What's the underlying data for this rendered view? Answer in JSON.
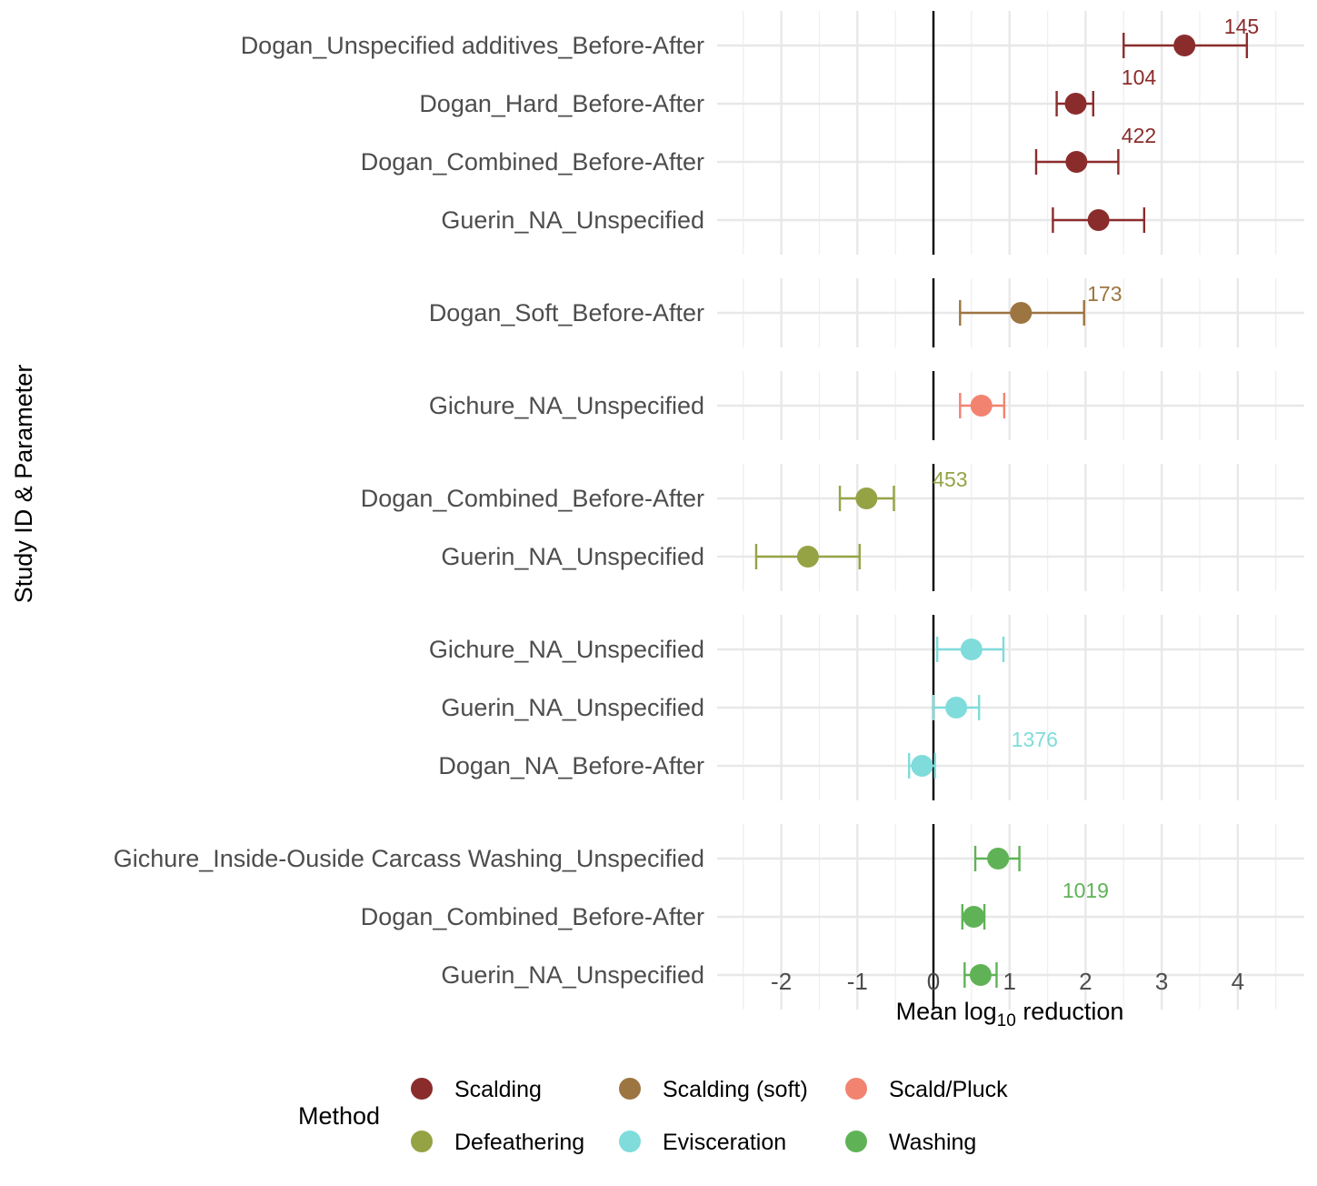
{
  "chart_data": {
    "type": "forest",
    "xlabel_main": "Mean log",
    "xlabel_sub": "10",
    "xlabel_tail": " reduction",
    "ylabel": "Study ID & Parameter",
    "xlim": [
      -2.5,
      4.7
    ],
    "xticks": [
      -2,
      -1,
      0,
      1,
      2,
      3,
      4
    ],
    "xtick_labels": [
      "-2",
      "-1",
      "0",
      "1",
      "2",
      "3",
      "4"
    ],
    "reference_line": 0,
    "grid": true,
    "legend": {
      "title": "Method",
      "position": "bottom",
      "items": [
        {
          "label": "Scalding",
          "color": "#8b2c2c"
        },
        {
          "label": "Scalding (soft)",
          "color": "#9c7541"
        },
        {
          "label": "Scald/Pluck",
          "color": "#f28371"
        },
        {
          "label": "Defeathering",
          "color": "#96a345"
        },
        {
          "label": "Evisceration",
          "color": "#7fdcdb"
        },
        {
          "label": "Washing",
          "color": "#5fb356"
        }
      ]
    },
    "panels": [
      {
        "method": "Scalding",
        "color": "#8b2c2c",
        "n_label": {
          "text": "145",
          "x": 4.05
        },
        "extra_labels": [
          {
            "text": "104",
            "x": 2.7,
            "row": 1
          },
          {
            "text": "422",
            "x": 2.7,
            "row": 2
          }
        ],
        "rows": [
          {
            "label": "Dogan_Unspecified additives_Before-After",
            "mean": 3.3,
            "lo": 2.5,
            "hi": 4.12
          },
          {
            "label": "Dogan_Hard_Before-After",
            "mean": 1.87,
            "lo": 1.62,
            "hi": 2.1
          },
          {
            "label": "Dogan_Combined_Before-After",
            "mean": 1.88,
            "lo": 1.35,
            "hi": 2.43
          },
          {
            "label": "Guerin_NA_Unspecified",
            "mean": 2.17,
            "lo": 1.57,
            "hi": 2.77
          }
        ]
      },
      {
        "method": "Scalding (soft)",
        "color": "#9c7541",
        "n_label": {
          "text": "173",
          "x": 2.25
        },
        "rows": [
          {
            "label": "Dogan_Soft_Before-After",
            "mean": 1.15,
            "lo": 0.35,
            "hi": 1.98
          }
        ]
      },
      {
        "method": "Scald/Pluck",
        "color": "#f28371",
        "rows": [
          {
            "label": "Gichure_NA_Unspecified",
            "mean": 0.63,
            "lo": 0.35,
            "hi": 0.93
          }
        ]
      },
      {
        "method": "Defeathering",
        "color": "#96a345",
        "n_label": {
          "text": "453",
          "x": 0.22
        },
        "rows": [
          {
            "label": "Dogan_Combined_Before-After",
            "mean": -0.88,
            "lo": -1.23,
            "hi": -0.52
          },
          {
            "label": "Guerin_NA_Unspecified",
            "mean": -1.65,
            "lo": -2.33,
            "hi": -0.97
          }
        ]
      },
      {
        "method": "Evisceration",
        "color": "#7fdcdb",
        "extra_labels": [
          {
            "text": "1376",
            "x": 1.33,
            "row": 2
          }
        ],
        "rows": [
          {
            "label": "Gichure_NA_Unspecified",
            "mean": 0.5,
            "lo": 0.05,
            "hi": 0.92
          },
          {
            "label": "Guerin_NA_Unspecified",
            "mean": 0.3,
            "lo": 0.0,
            "hi": 0.6
          },
          {
            "label": "Dogan_NA_Before-After",
            "mean": -0.15,
            "lo": -0.32,
            "hi": 0.02
          }
        ]
      },
      {
        "method": "Washing",
        "color": "#5fb356",
        "extra_labels": [
          {
            "text": "1019",
            "x": 2.0,
            "row": 1
          }
        ],
        "rows": [
          {
            "label": "Gichure_Inside-Ouside Carcass Washing_Unspecified",
            "mean": 0.85,
            "lo": 0.55,
            "hi": 1.13
          },
          {
            "label": "Dogan_Combined_Before-After",
            "mean": 0.53,
            "lo": 0.38,
            "hi": 0.67
          },
          {
            "label": "Guerin_NA_Unspecified",
            "mean": 0.62,
            "lo": 0.41,
            "hi": 0.83
          }
        ]
      }
    ]
  }
}
